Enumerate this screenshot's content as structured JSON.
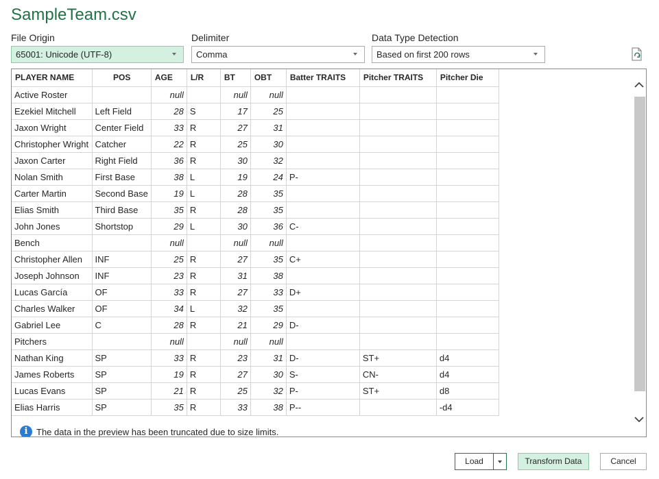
{
  "window": {
    "title": "SampleTeam.csv"
  },
  "options": {
    "file_origin": {
      "label": "File Origin",
      "value": "65001: Unicode (UTF-8)"
    },
    "delimiter": {
      "label": "Delimiter",
      "value": "Comma"
    },
    "detection": {
      "label": "Data Type Detection",
      "value": "Based on first 200 rows"
    }
  },
  "table": {
    "headers": [
      "PLAYER NAME",
      "POS",
      "AGE",
      "L/R",
      "BT",
      "OBT",
      "Batter TRAITS",
      "Pitcher TRAITS",
      "Pitcher Die"
    ],
    "rows": [
      [
        "Active Roster",
        "",
        "null",
        "",
        "null",
        "null",
        "",
        "",
        ""
      ],
      [
        "Ezekiel Mitchell",
        "Left Field",
        "28",
        "S",
        "17",
        "25",
        "",
        "",
        ""
      ],
      [
        "Jaxon Wright",
        "Center Field",
        "33",
        "R",
        "27",
        "31",
        "",
        "",
        ""
      ],
      [
        "Christopher Wright",
        "Catcher",
        "22",
        "R",
        "25",
        "30",
        "",
        "",
        ""
      ],
      [
        "Jaxon Carter",
        "Right Field",
        "36",
        "R",
        "30",
        "32",
        "",
        "",
        ""
      ],
      [
        "Nolan Smith",
        "First Base",
        "38",
        "L",
        "19",
        "24",
        "P-",
        "",
        ""
      ],
      [
        "Carter Martin",
        "Second Base",
        "19",
        "L",
        "28",
        "35",
        "",
        "",
        ""
      ],
      [
        "Elias Smith",
        "Third Base",
        "35",
        "R",
        "28",
        "35",
        "",
        "",
        ""
      ],
      [
        "John Jones",
        "Shortstop",
        "29",
        "L",
        "30",
        "36",
        "C-",
        "",
        ""
      ],
      [
        "Bench",
        "",
        "null",
        "",
        "null",
        "null",
        "",
        "",
        ""
      ],
      [
        "Christopher Allen",
        "INF",
        "25",
        "R",
        "27",
        "35",
        "C+",
        "",
        ""
      ],
      [
        "Joseph Johnson",
        "INF",
        "23",
        "R",
        "31",
        "38",
        "",
        "",
        ""
      ],
      [
        "Lucas García",
        "OF",
        "33",
        "R",
        "27",
        "33",
        "D+",
        "",
        ""
      ],
      [
        "Charles Walker",
        "OF",
        "34",
        "L",
        "32",
        "35",
        "",
        "",
        ""
      ],
      [
        "Gabriel Lee",
        "C",
        "28",
        "R",
        "21",
        "29",
        "D-",
        "",
        ""
      ],
      [
        "Pitchers",
        "",
        "null",
        "",
        "null",
        "null",
        "",
        "",
        ""
      ],
      [
        "Nathan King",
        "SP",
        "33",
        "R",
        "23",
        "31",
        "D-",
        "ST+",
        "d4"
      ],
      [
        "James Roberts",
        "SP",
        "19",
        "R",
        "27",
        "30",
        "S-",
        "CN-",
        "d4"
      ],
      [
        "Lucas Evans",
        "SP",
        "21",
        "R",
        "25",
        "32",
        "P-",
        "ST+",
        "d8"
      ],
      [
        "Elias Harris",
        "SP",
        "35",
        "R",
        "33",
        "38",
        "P--",
        "",
        "-d4"
      ]
    ]
  },
  "info_message": "The data in the preview has been truncated due to size limits.",
  "buttons": {
    "load": "Load",
    "transform": "Transform Data",
    "cancel": "Cancel"
  },
  "colors": {
    "title": "#217346",
    "selected_bg": "#d3f0e0",
    "info_icon": "#2a7bd1"
  },
  "icons": [
    "refresh-icon",
    "info-icon",
    "scroll-up-icon",
    "scroll-down-icon",
    "dropdown-arrow-icon"
  ]
}
